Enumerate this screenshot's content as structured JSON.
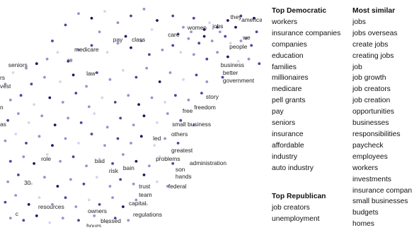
{
  "chart_data": {
    "type": "scatter",
    "title": "",
    "xlabel": "",
    "ylabel": "",
    "grid": false,
    "colors": {
      "light": "#d9d4ec",
      "mid": "#9e8fcc",
      "dark": "#5a3f9c",
      "darkest": "#2d0f5e"
    },
    "points": [
      {
        "x": 0.3,
        "y": 0.94,
        "shade": 1
      },
      {
        "x": 0.25,
        "y": 0.89,
        "shade": 2
      },
      {
        "x": 0.35,
        "y": 0.92,
        "shade": 3
      },
      {
        "x": 0.4,
        "y": 0.95,
        "shade": 0
      },
      {
        "x": 0.45,
        "y": 0.9,
        "shade": 1
      },
      {
        "x": 0.5,
        "y": 0.93,
        "shade": 2
      },
      {
        "x": 0.55,
        "y": 0.96,
        "shade": 1
      },
      {
        "x": 0.6,
        "y": 0.91,
        "shade": 3
      },
      {
        "x": 0.58,
        "y": 0.87,
        "shade": 0
      },
      {
        "x": 0.66,
        "y": 0.93,
        "shade": 2
      },
      {
        "x": 0.7,
        "y": 0.88,
        "shade": 1
      },
      {
        "x": 0.74,
        "y": 0.92,
        "shade": 2
      },
      {
        "x": 0.8,
        "y": 0.9,
        "shade": 0
      },
      {
        "x": 0.84,
        "y": 0.86,
        "shade": 1
      },
      {
        "x": 0.9,
        "y": 0.88,
        "shade": 3
      },
      {
        "x": 0.94,
        "y": 0.83,
        "shade": 1
      },
      {
        "x": 0.98,
        "y": 0.86,
        "shade": 2
      },
      {
        "x": 0.72,
        "y": 0.83,
        "shade": 1
      },
      {
        "x": 0.76,
        "y": 0.81,
        "shade": 2
      },
      {
        "x": 0.78,
        "y": 0.84,
        "shade": 3
      },
      {
        "x": 0.81,
        "y": 0.82,
        "shade": 1
      },
      {
        "x": 0.86,
        "y": 0.84,
        "shade": 2
      },
      {
        "x": 0.88,
        "y": 0.81,
        "shade": 0
      },
      {
        "x": 0.92,
        "y": 0.82,
        "shade": 1
      },
      {
        "x": 0.96,
        "y": 0.8,
        "shade": 2
      },
      {
        "x": 0.74,
        "y": 0.76,
        "shade": 1
      },
      {
        "x": 0.79,
        "y": 0.74,
        "shade": 2
      },
      {
        "x": 0.83,
        "y": 0.77,
        "shade": 1
      },
      {
        "x": 0.87,
        "y": 0.75,
        "shade": 3
      },
      {
        "x": 0.91,
        "y": 0.73,
        "shade": 0
      },
      {
        "x": 0.95,
        "y": 0.74,
        "shade": 1
      },
      {
        "x": 0.99,
        "y": 0.72,
        "shade": 2
      },
      {
        "x": 0.62,
        "y": 0.78,
        "shade": 1
      },
      {
        "x": 0.66,
        "y": 0.8,
        "shade": 2
      },
      {
        "x": 0.69,
        "y": 0.77,
        "shade": 0
      },
      {
        "x": 0.3,
        "y": 0.78,
        "shade": 1
      },
      {
        "x": 0.35,
        "y": 0.8,
        "shade": 2
      },
      {
        "x": 0.41,
        "y": 0.77,
        "shade": 0
      },
      {
        "x": 0.45,
        "y": 0.81,
        "shade": 1
      },
      {
        "x": 0.5,
        "y": 0.79,
        "shade": 3
      },
      {
        "x": 0.54,
        "y": 0.82,
        "shade": 1
      },
      {
        "x": 0.57,
        "y": 0.76,
        "shade": 2
      },
      {
        "x": 0.18,
        "y": 0.74,
        "shade": 1
      },
      {
        "x": 0.22,
        "y": 0.77,
        "shade": 0
      },
      {
        "x": 0.26,
        "y": 0.73,
        "shade": 2
      },
      {
        "x": 0.1,
        "y": 0.7,
        "shade": 1
      },
      {
        "x": 0.14,
        "y": 0.72,
        "shade": 3
      },
      {
        "x": 0.05,
        "y": 0.68,
        "shade": 0
      },
      {
        "x": 0.02,
        "y": 0.63,
        "shade": 1
      },
      {
        "x": 0.12,
        "y": 0.63,
        "shade": 2
      },
      {
        "x": 0.17,
        "y": 0.66,
        "shade": 1
      },
      {
        "x": 0.23,
        "y": 0.64,
        "shade": 0
      },
      {
        "x": 0.28,
        "y": 0.67,
        "shade": 3
      },
      {
        "x": 0.33,
        "y": 0.62,
        "shade": 1
      },
      {
        "x": 0.37,
        "y": 0.68,
        "shade": 2
      },
      {
        "x": 0.42,
        "y": 0.65,
        "shade": 1
      },
      {
        "x": 0.47,
        "y": 0.69,
        "shade": 0
      },
      {
        "x": 0.52,
        "y": 0.66,
        "shade": 2
      },
      {
        "x": 0.56,
        "y": 0.7,
        "shade": 1
      },
      {
        "x": 0.61,
        "y": 0.64,
        "shade": 3
      },
      {
        "x": 0.65,
        "y": 0.68,
        "shade": 1
      },
      {
        "x": 0.7,
        "y": 0.65,
        "shade": 0
      },
      {
        "x": 0.75,
        "y": 0.67,
        "shade": 2
      },
      {
        "x": 0.79,
        "y": 0.64,
        "shade": 1
      },
      {
        "x": 0.85,
        "y": 0.66,
        "shade": 2
      },
      {
        "x": 0.04,
        "y": 0.56,
        "shade": 1
      },
      {
        "x": 0.08,
        "y": 0.58,
        "shade": 2
      },
      {
        "x": 0.13,
        "y": 0.54,
        "shade": 0
      },
      {
        "x": 0.19,
        "y": 0.57,
        "shade": 3
      },
      {
        "x": 0.24,
        "y": 0.55,
        "shade": 1
      },
      {
        "x": 0.29,
        "y": 0.59,
        "shade": 2
      },
      {
        "x": 0.34,
        "y": 0.53,
        "shade": 1
      },
      {
        "x": 0.39,
        "y": 0.57,
        "shade": 0
      },
      {
        "x": 0.44,
        "y": 0.55,
        "shade": 2
      },
      {
        "x": 0.49,
        "y": 0.58,
        "shade": 1
      },
      {
        "x": 0.53,
        "y": 0.54,
        "shade": 3
      },
      {
        "x": 0.58,
        "y": 0.57,
        "shade": 1
      },
      {
        "x": 0.63,
        "y": 0.55,
        "shade": 0
      },
      {
        "x": 0.67,
        "y": 0.58,
        "shade": 2
      },
      {
        "x": 0.72,
        "y": 0.56,
        "shade": 1
      },
      {
        "x": 0.77,
        "y": 0.59,
        "shade": 2
      },
      {
        "x": 0.03,
        "y": 0.47,
        "shade": 2
      },
      {
        "x": 0.07,
        "y": 0.5,
        "shade": 1
      },
      {
        "x": 0.11,
        "y": 0.46,
        "shade": 0
      },
      {
        "x": 0.16,
        "y": 0.49,
        "shade": 1
      },
      {
        "x": 0.21,
        "y": 0.45,
        "shade": 3
      },
      {
        "x": 0.26,
        "y": 0.48,
        "shade": 1
      },
      {
        "x": 0.31,
        "y": 0.46,
        "shade": 2
      },
      {
        "x": 0.36,
        "y": 0.5,
        "shade": 0
      },
      {
        "x": 0.41,
        "y": 0.44,
        "shade": 1
      },
      {
        "x": 0.46,
        "y": 0.48,
        "shade": 2
      },
      {
        "x": 0.51,
        "y": 0.45,
        "shade": 1
      },
      {
        "x": 0.55,
        "y": 0.49,
        "shade": 3
      },
      {
        "x": 0.6,
        "y": 0.46,
        "shade": 0
      },
      {
        "x": 0.64,
        "y": 0.5,
        "shade": 1
      },
      {
        "x": 0.69,
        "y": 0.47,
        "shade": 2
      },
      {
        "x": 0.74,
        "y": 0.45,
        "shade": 1
      },
      {
        "x": 0.02,
        "y": 0.38,
        "shade": 1
      },
      {
        "x": 0.06,
        "y": 0.41,
        "shade": 0
      },
      {
        "x": 0.1,
        "y": 0.37,
        "shade": 2
      },
      {
        "x": 0.15,
        "y": 0.4,
        "shade": 1
      },
      {
        "x": 0.2,
        "y": 0.36,
        "shade": 3
      },
      {
        "x": 0.25,
        "y": 0.39,
        "shade": 1
      },
      {
        "x": 0.3,
        "y": 0.37,
        "shade": 0
      },
      {
        "x": 0.35,
        "y": 0.41,
        "shade": 2
      },
      {
        "x": 0.4,
        "y": 0.36,
        "shade": 1
      },
      {
        "x": 0.45,
        "y": 0.39,
        "shade": 2
      },
      {
        "x": 0.5,
        "y": 0.37,
        "shade": 1
      },
      {
        "x": 0.54,
        "y": 0.4,
        "shade": 3
      },
      {
        "x": 0.59,
        "y": 0.36,
        "shade": 0
      },
      {
        "x": 0.63,
        "y": 0.39,
        "shade": 1
      },
      {
        "x": 0.68,
        "y": 0.37,
        "shade": 2
      },
      {
        "x": 0.04,
        "y": 0.29,
        "shade": 2
      },
      {
        "x": 0.09,
        "y": 0.31,
        "shade": 1
      },
      {
        "x": 0.13,
        "y": 0.28,
        "shade": 3
      },
      {
        "x": 0.18,
        "y": 0.32,
        "shade": 0
      },
      {
        "x": 0.23,
        "y": 0.29,
        "shade": 1
      },
      {
        "x": 0.28,
        "y": 0.31,
        "shade": 2
      },
      {
        "x": 0.33,
        "y": 0.27,
        "shade": 1
      },
      {
        "x": 0.38,
        "y": 0.3,
        "shade": 0
      },
      {
        "x": 0.43,
        "y": 0.28,
        "shade": 2
      },
      {
        "x": 0.47,
        "y": 0.32,
        "shade": 1
      },
      {
        "x": 0.52,
        "y": 0.29,
        "shade": 3
      },
      {
        "x": 0.57,
        "y": 0.27,
        "shade": 1
      },
      {
        "x": 0.61,
        "y": 0.31,
        "shade": 0
      },
      {
        "x": 0.66,
        "y": 0.28,
        "shade": 2
      },
      {
        "x": 0.03,
        "y": 0.2,
        "shade": 1
      },
      {
        "x": 0.07,
        "y": 0.23,
        "shade": 2
      },
      {
        "x": 0.12,
        "y": 0.19,
        "shade": 0
      },
      {
        "x": 0.17,
        "y": 0.22,
        "shade": 1
      },
      {
        "x": 0.22,
        "y": 0.18,
        "shade": 3
      },
      {
        "x": 0.27,
        "y": 0.21,
        "shade": 1
      },
      {
        "x": 0.32,
        "y": 0.19,
        "shade": 2
      },
      {
        "x": 0.37,
        "y": 0.22,
        "shade": 0
      },
      {
        "x": 0.42,
        "y": 0.18,
        "shade": 1
      },
      {
        "x": 0.46,
        "y": 0.21,
        "shade": 2
      },
      {
        "x": 0.51,
        "y": 0.19,
        "shade": 1
      },
      {
        "x": 0.55,
        "y": 0.23,
        "shade": 3
      },
      {
        "x": 0.6,
        "y": 0.2,
        "shade": 0
      },
      {
        "x": 0.64,
        "y": 0.18,
        "shade": 1
      },
      {
        "x": 0.02,
        "y": 0.11,
        "shade": 2
      },
      {
        "x": 0.06,
        "y": 0.14,
        "shade": 1
      },
      {
        "x": 0.11,
        "y": 0.1,
        "shade": 3
      },
      {
        "x": 0.15,
        "y": 0.13,
        "shade": 0
      },
      {
        "x": 0.2,
        "y": 0.1,
        "shade": 1
      },
      {
        "x": 0.25,
        "y": 0.13,
        "shade": 2
      },
      {
        "x": 0.29,
        "y": 0.09,
        "shade": 1
      },
      {
        "x": 0.34,
        "y": 0.12,
        "shade": 0
      },
      {
        "x": 0.38,
        "y": 0.1,
        "shade": 2
      },
      {
        "x": 0.43,
        "y": 0.13,
        "shade": 1
      },
      {
        "x": 0.47,
        "y": 0.09,
        "shade": 3
      },
      {
        "x": 0.52,
        "y": 0.12,
        "shade": 1
      },
      {
        "x": 0.56,
        "y": 0.1,
        "shade": 0
      },
      {
        "x": 0.04,
        "y": 0.04,
        "shade": 1
      },
      {
        "x": 0.09,
        "y": 0.03,
        "shade": 2
      },
      {
        "x": 0.14,
        "y": 0.05,
        "shade": 3
      },
      {
        "x": 0.19,
        "y": 0.02,
        "shade": 0
      },
      {
        "x": 0.24,
        "y": 0.04,
        "shade": 1
      },
      {
        "x": 0.3,
        "y": 0.03,
        "shade": 2
      },
      {
        "x": 0.36,
        "y": 0.05,
        "shade": 1
      },
      {
        "x": 0.41,
        "y": 0.02,
        "shade": 0
      },
      {
        "x": 0.44,
        "y": 0.04,
        "shade": 2
      },
      {
        "x": 0.49,
        "y": 0.03,
        "shade": 1
      },
      {
        "x": 0.87,
        "y": 0.91,
        "shade": 3
      },
      {
        "x": 0.92,
        "y": 0.93,
        "shade": 2
      },
      {
        "x": 0.97,
        "y": 0.92,
        "shade": 3
      },
      {
        "x": 0.83,
        "y": 0.88,
        "shade": 2
      },
      {
        "x": 0.78,
        "y": 0.87,
        "shade": 3
      },
      {
        "x": 0.73,
        "y": 0.86,
        "shade": 1
      },
      {
        "x": 0.68,
        "y": 0.85,
        "shade": 2
      },
      {
        "x": 0.48,
        "y": 0.84,
        "shade": 3
      },
      {
        "x": 0.38,
        "y": 0.86,
        "shade": 1
      },
      {
        "x": 0.2,
        "y": 0.82,
        "shade": 2
      }
    ],
    "labels": [
      {
        "text": "they",
        "x": 0.88,
        "y": 0.916
      },
      {
        "text": "america",
        "x": 0.922,
        "y": 0.903
      },
      {
        "text": "women",
        "x": 0.716,
        "y": 0.87
      },
      {
        "text": "jobs",
        "x": 0.811,
        "y": 0.876
      },
      {
        "text": "care",
        "x": 0.641,
        "y": 0.839
      },
      {
        "text": "we",
        "x": 0.927,
        "y": 0.826
      },
      {
        "text": "pay",
        "x": 0.432,
        "y": 0.817
      },
      {
        "text": "class",
        "x": 0.503,
        "y": 0.817
      },
      {
        "text": "people",
        "x": 0.876,
        "y": 0.786
      },
      {
        "text": "medicare",
        "x": 0.284,
        "y": 0.773
      },
      {
        "text": "re",
        "x": 0.257,
        "y": 0.727
      },
      {
        "text": "seniors",
        "x": 0.032,
        "y": 0.705
      },
      {
        "text": "business",
        "x": 0.843,
        "y": 0.705
      },
      {
        "text": "better",
        "x": 0.851,
        "y": 0.671
      },
      {
        "text": "law",
        "x": 0.33,
        "y": 0.668
      },
      {
        "text": "rs",
        "x": 0.0,
        "y": 0.649
      },
      {
        "text": "government",
        "x": 0.851,
        "y": 0.637
      },
      {
        "text": "vest",
        "x": 0.0,
        "y": 0.612
      },
      {
        "text": "story",
        "x": 0.786,
        "y": 0.565
      },
      {
        "text": "n",
        "x": 0.0,
        "y": 0.519
      },
      {
        "text": "freedom",
        "x": 0.741,
        "y": 0.519
      },
      {
        "text": "free",
        "x": 0.697,
        "y": 0.503
      },
      {
        "text": "as",
        "x": 0.0,
        "y": 0.444
      },
      {
        "text": "small business",
        "x": 0.657,
        "y": 0.444
      },
      {
        "text": "others",
        "x": 0.654,
        "y": 0.401
      },
      {
        "text": "led",
        "x": 0.584,
        "y": 0.382
      },
      {
        "text": "greatest",
        "x": 0.654,
        "y": 0.329
      },
      {
        "text": "role",
        "x": 0.157,
        "y": 0.292
      },
      {
        "text": "bad",
        "x": 0.362,
        "y": 0.283
      },
      {
        "text": "problems",
        "x": 0.595,
        "y": 0.292
      },
      {
        "text": "administration",
        "x": 0.724,
        "y": 0.273
      },
      {
        "text": "bain",
        "x": 0.47,
        "y": 0.252
      },
      {
        "text": "risk",
        "x": 0.416,
        "y": 0.239
      },
      {
        "text": "son",
        "x": 0.67,
        "y": 0.245
      },
      {
        "text": "hands",
        "x": 0.67,
        "y": 0.214
      },
      {
        "text": "30",
        "x": 0.092,
        "y": 0.186
      },
      {
        "text": "trust",
        "x": 0.53,
        "y": 0.171
      },
      {
        "text": "federal",
        "x": 0.643,
        "y": 0.171
      },
      {
        "text": "team",
        "x": 0.53,
        "y": 0.134
      },
      {
        "text": "capital",
        "x": 0.492,
        "y": 0.096
      },
      {
        "text": "resources",
        "x": 0.146,
        "y": 0.081
      },
      {
        "text": "owners",
        "x": 0.335,
        "y": 0.062
      },
      {
        "text": "regulations",
        "x": 0.508,
        "y": 0.047
      },
      {
        "text": "blessed",
        "x": 0.384,
        "y": 0.019
      },
      {
        "text": "c",
        "x": 0.059,
        "y": 0.05
      },
      {
        "text": "hours",
        "x": 0.33,
        "y": -0.003
      }
    ]
  },
  "lists": {
    "top_democratic": {
      "heading": "Top Democratic",
      "items": [
        "workers",
        "insurance companies",
        "companies",
        "education",
        "families",
        "millionaires",
        "medicare",
        "pell grants",
        "pay",
        "seniors",
        "insurance",
        "affordable",
        "industry",
        "auto industry"
      ]
    },
    "most_similar": {
      "heading": "Most similar",
      "items": [
        "jobs",
        "jobs overseas",
        "create jobs",
        "creating jobs",
        "job",
        "job growth",
        "job creators",
        "job creation",
        "opportunities",
        "businesses",
        "responsibilities",
        "paycheck",
        "employees",
        "workers",
        "investments",
        "insurance compan",
        "small businesses",
        "budgets",
        "homes"
      ]
    },
    "top_republican": {
      "heading": "Top Republican",
      "items": [
        "job creators",
        "unemployment"
      ]
    }
  }
}
